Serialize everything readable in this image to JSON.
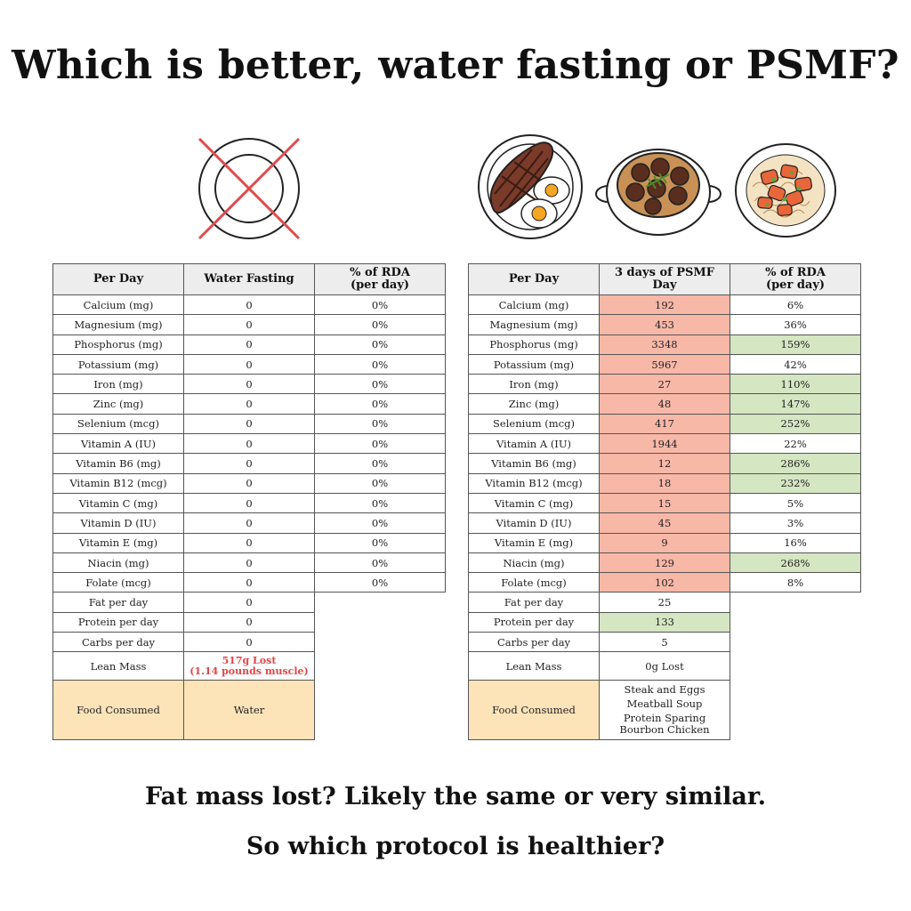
{
  "title": "Which is better, water fasting or PSMF?",
  "illustrations": [
    {
      "name": "crossed-out-empty-plate",
      "icon": "empty-plate-crossed-icon"
    },
    {
      "name": "steak-and-eggs",
      "icon": "steak-eggs-icon"
    },
    {
      "name": "meatball-soup",
      "icon": "meatball-soup-icon"
    },
    {
      "name": "bourbon-chicken",
      "icon": "bourbon-chicken-icon"
    }
  ],
  "colors": {
    "header_bg": "#ededed",
    "low_value_red": "#f8b8a8",
    "good_value_green": "#d5e6c2",
    "food_row_tan": "#fce3b8",
    "loss_text_red": "#e04646",
    "cross_red": "#e04b4b"
  },
  "water_table": {
    "headers": [
      "Per Day",
      "Water Fasting",
      "% of RDA\n(per day)"
    ],
    "rows": [
      {
        "label": "Calcium (mg)",
        "value": "0",
        "rda": "0%"
      },
      {
        "label": "Magnesium (mg)",
        "value": "0",
        "rda": "0%"
      },
      {
        "label": "Phosphorus (mg)",
        "value": "0",
        "rda": "0%"
      },
      {
        "label": "Potassium (mg)",
        "value": "0",
        "rda": "0%"
      },
      {
        "label": "Iron (mg)",
        "value": "0",
        "rda": "0%"
      },
      {
        "label": "Zinc (mg)",
        "value": "0",
        "rda": "0%"
      },
      {
        "label": "Selenium (mcg)",
        "value": "0",
        "rda": "0%"
      },
      {
        "label": "Vitamin A (IU)",
        "value": "0",
        "rda": "0%"
      },
      {
        "label": "Vitamin B6 (mg)",
        "value": "0",
        "rda": "0%"
      },
      {
        "label": "Vitamin B12 (mcg)",
        "value": "0",
        "rda": "0%"
      },
      {
        "label": "Vitamin C (mg)",
        "value": "0",
        "rda": "0%"
      },
      {
        "label": "Vitamin D (IU)",
        "value": "0",
        "rda": "0%"
      },
      {
        "label": "Vitamin E (mg)",
        "value": "0",
        "rda": "0%"
      },
      {
        "label": "Niacin (mg)",
        "value": "0",
        "rda": "0%"
      },
      {
        "label": "Folate (mcg)",
        "value": "0",
        "rda": "0%"
      }
    ],
    "macros": [
      {
        "label": "Fat per day",
        "value": "0"
      },
      {
        "label": "Protein per day",
        "value": "0"
      },
      {
        "label": "Carbs per day",
        "value": "0"
      }
    ],
    "lean_mass": {
      "label": "Lean Mass",
      "line1": "517g Lost",
      "line2": "(1.14 pounds muscle)"
    },
    "food": {
      "label": "Food Consumed",
      "items": [
        "Water"
      ]
    }
  },
  "psmf_table": {
    "headers": [
      "Per Day",
      "3 days of PSMF Day",
      "% of RDA\n(per day)"
    ],
    "rows": [
      {
        "label": "Calcium (mg)",
        "value": "192",
        "rda": "6%",
        "rda_good": false
      },
      {
        "label": "Magnesium (mg)",
        "value": "453",
        "rda": "36%",
        "rda_good": false
      },
      {
        "label": "Phosphorus (mg)",
        "value": "3348",
        "rda": "159%",
        "rda_good": true
      },
      {
        "label": "Potassium (mg)",
        "value": "5967",
        "rda": "42%",
        "rda_good": false
      },
      {
        "label": "Iron (mg)",
        "value": "27",
        "rda": "110%",
        "rda_good": true
      },
      {
        "label": "Zinc (mg)",
        "value": "48",
        "rda": "147%",
        "rda_good": true
      },
      {
        "label": "Selenium (mcg)",
        "value": "417",
        "rda": "252%",
        "rda_good": true
      },
      {
        "label": "Vitamin A (IU)",
        "value": "1944",
        "rda": "22%",
        "rda_good": false
      },
      {
        "label": "Vitamin B6 (mg)",
        "value": "12",
        "rda": "286%",
        "rda_good": true
      },
      {
        "label": "Vitamin B12 (mcg)",
        "value": "18",
        "rda": "232%",
        "rda_good": true
      },
      {
        "label": "Vitamin C (mg)",
        "value": "15",
        "rda": "5%",
        "rda_good": false
      },
      {
        "label": "Vitamin D (IU)",
        "value": "45",
        "rda": "3%",
        "rda_good": false
      },
      {
        "label": "Vitamin E (mg)",
        "value": "9",
        "rda": "16%",
        "rda_good": false
      },
      {
        "label": "Niacin (mg)",
        "value": "129",
        "rda": "268%",
        "rda_good": true
      },
      {
        "label": "Folate (mcg)",
        "value": "102",
        "rda": "8%",
        "rda_good": false
      }
    ],
    "macros": [
      {
        "label": "Fat per day",
        "value": "25",
        "good": false
      },
      {
        "label": "Protein per day",
        "value": "133",
        "good": true
      },
      {
        "label": "Carbs per day",
        "value": "5",
        "good": false
      }
    ],
    "lean_mass": {
      "label": "Lean Mass",
      "value": "0g Lost"
    },
    "food": {
      "label": "Food Consumed",
      "items": [
        "Steak and Eggs",
        "Meatball Soup",
        "Protein Sparing\nBourbon Chicken"
      ]
    }
  },
  "footer": {
    "line1": "Fat mass lost? Likely the same or very similar.",
    "line2": "So which protocol is healthier?"
  }
}
